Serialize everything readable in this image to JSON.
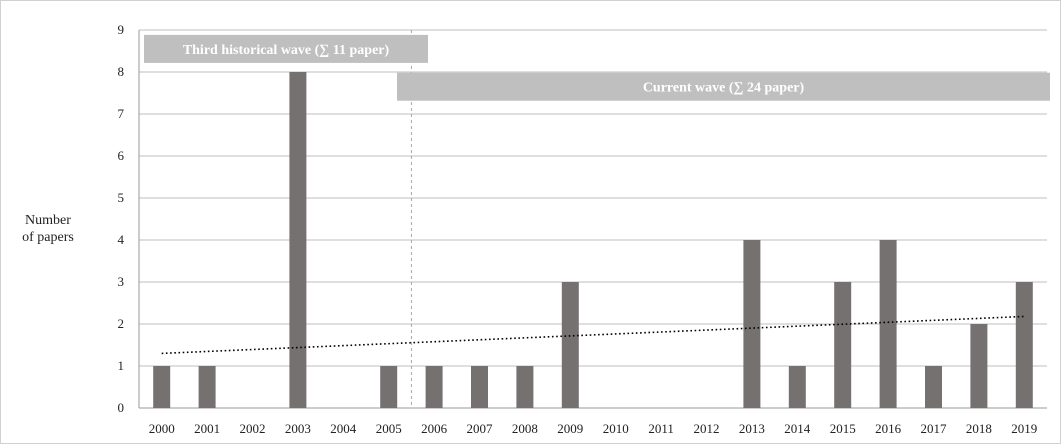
{
  "chart_data": {
    "type": "bar",
    "title": "",
    "xlabel": "",
    "ylabel_lines": [
      "Number",
      "of papers"
    ],
    "categories": [
      "2000",
      "2001",
      "2002",
      "2003",
      "2004",
      "2005",
      "2006",
      "2007",
      "2008",
      "2009",
      "2010",
      "2011",
      "2012",
      "2013",
      "2014",
      "2015",
      "2016",
      "2017",
      "2018",
      "2019"
    ],
    "values": [
      1,
      1,
      0,
      8,
      0,
      1,
      1,
      1,
      1,
      3,
      0,
      0,
      0,
      4,
      1,
      3,
      4,
      1,
      2,
      3
    ],
    "yticks": [
      "0",
      "1",
      "2",
      "3",
      "4",
      "5",
      "6",
      "7",
      "8",
      "9"
    ],
    "ylim": [
      0,
      9
    ],
    "grid": true,
    "trendline": {
      "style": "dotted",
      "start_value": 1.3,
      "end_value": 2.18
    },
    "divider": {
      "between": [
        "2005",
        "2006"
      ],
      "style": "dashed"
    },
    "annotations": [
      {
        "text": "Third historical wave (∑ 11 paper)",
        "from_category": "2000",
        "to_category": "2005",
        "y_value": 8.55
      },
      {
        "text": "Current wave (∑ 24 paper)",
        "from_category": "2005",
        "to_category": "2019",
        "y_value": 7.65
      }
    ],
    "colors": {
      "bar": "#767171",
      "annotation_band": "#bfbfbf",
      "grid": "#bfbfbf",
      "trend": "#000000"
    }
  }
}
